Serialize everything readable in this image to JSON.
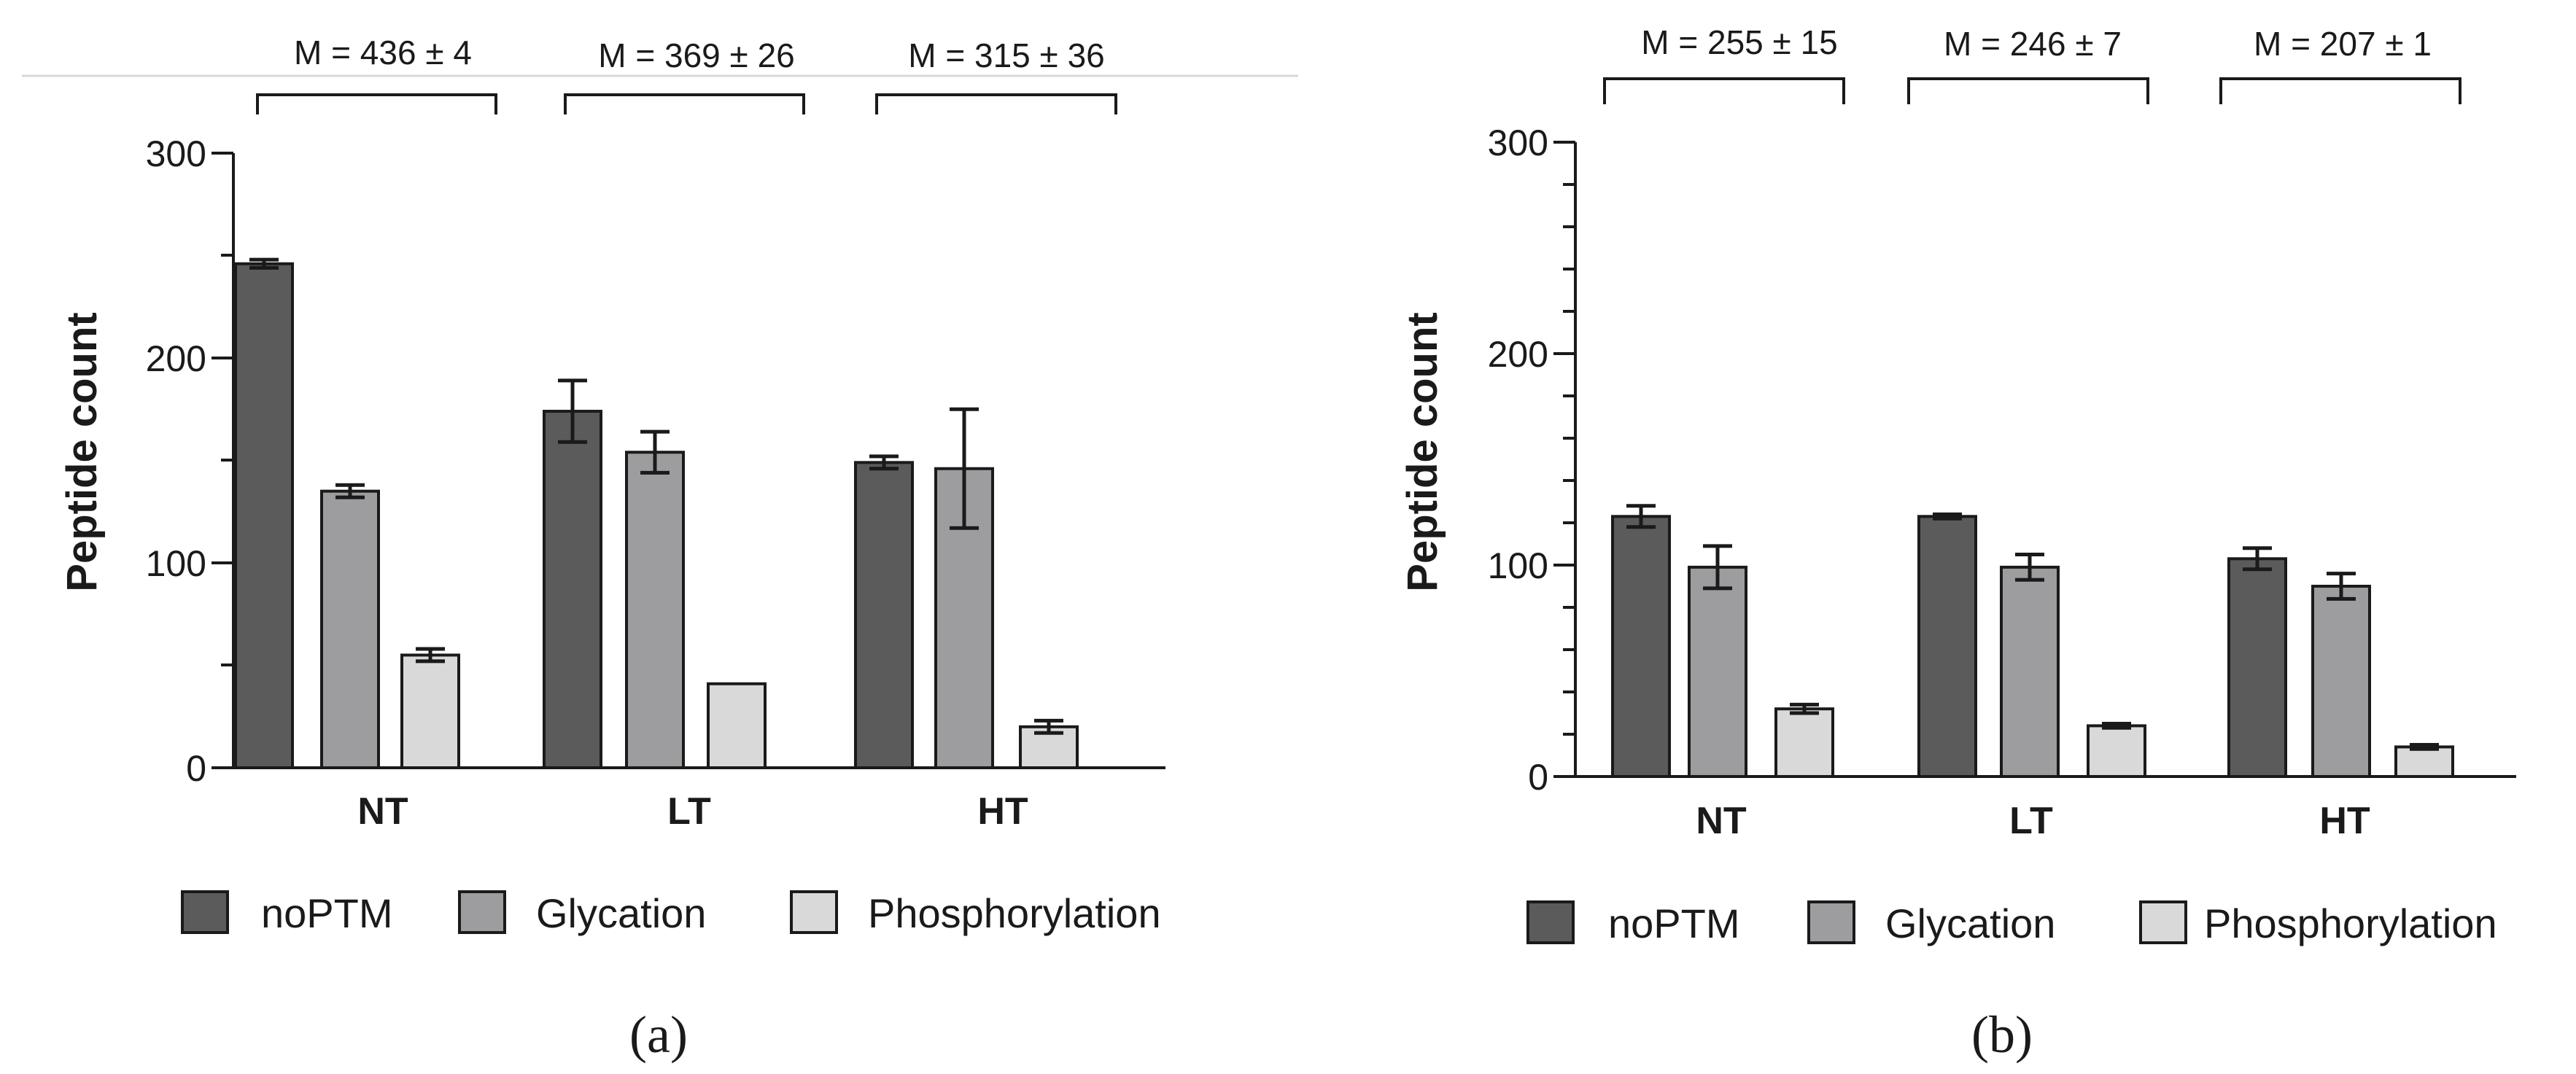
{
  "colors": {
    "noPTM": "#5b5b5b",
    "Glycation": "#9d9da0",
    "Phosphorylation": "#d9d9d9",
    "axis": "#1a1a1a",
    "divider": "#d8d8d8"
  },
  "chart_data": [
    {
      "type": "bar",
      "panel_label": "(a)",
      "ylabel": "Peptide count",
      "ylim": [
        0,
        300
      ],
      "yticks": [
        0,
        100,
        200,
        300
      ],
      "categories": [
        "NT",
        "LT",
        "HT"
      ],
      "series": [
        {
          "name": "noPTM",
          "values": [
            246,
            174,
            149
          ],
          "errors": [
            2,
            15,
            3
          ]
        },
        {
          "name": "Glycation",
          "values": [
            135,
            154,
            146
          ],
          "errors": [
            3,
            10,
            29
          ]
        },
        {
          "name": "Phosphorylation",
          "values": [
            55,
            41,
            20
          ],
          "errors": [
            3,
            0,
            3
          ]
        }
      ],
      "annotations": [
        "M = 436 ± 4",
        "M = 369 ± 26",
        "M = 315 ± 36"
      ],
      "legend": [
        "noPTM",
        "Glycation",
        "Phosphorylation"
      ],
      "legend_position": "bottom"
    },
    {
      "type": "bar",
      "panel_label": "(b)",
      "ylabel": "Peptide count",
      "ylim": [
        0,
        300
      ],
      "yticks": [
        0,
        100,
        200,
        300
      ],
      "categories": [
        "NT",
        "LT",
        "HT"
      ],
      "series": [
        {
          "name": "noPTM",
          "values": [
            123,
            123,
            103
          ],
          "errors": [
            5,
            1,
            5
          ]
        },
        {
          "name": "Glycation",
          "values": [
            99,
            99,
            90
          ],
          "errors": [
            10,
            6,
            6
          ]
        },
        {
          "name": "Phosphorylation",
          "values": [
            32,
            24,
            14
          ],
          "errors": [
            2,
            1,
            1
          ]
        }
      ],
      "annotations": [
        "M = 255 ± 15",
        "M = 246 ± 7",
        "M = 207 ± 1"
      ],
      "legend": [
        "noPTM",
        "Glycation",
        "Phosphorylation"
      ],
      "legend_position": "bottom"
    }
  ]
}
